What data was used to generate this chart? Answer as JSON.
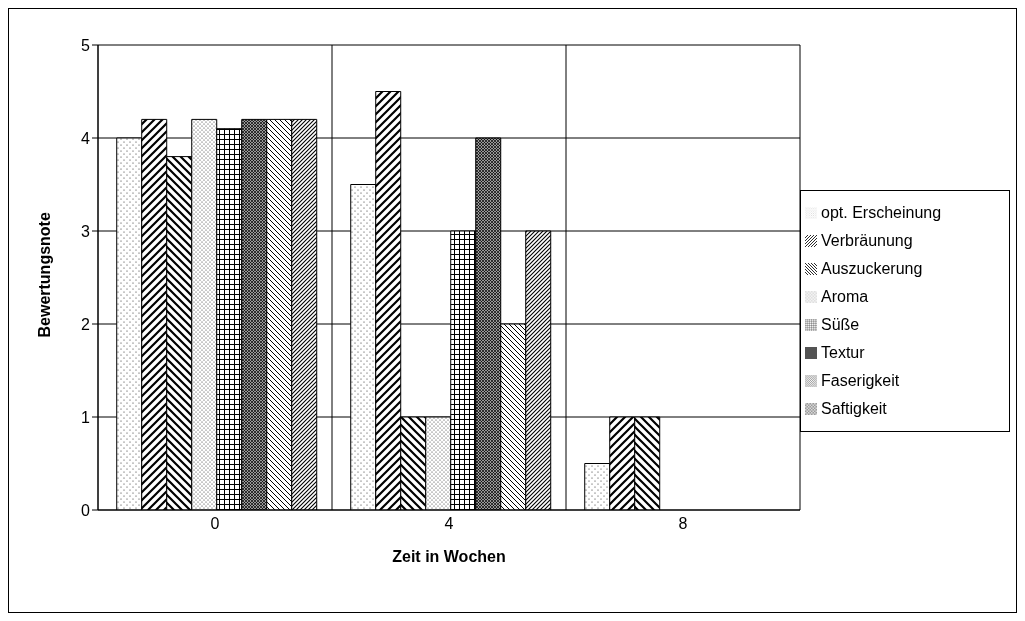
{
  "chart_data": {
    "type": "bar",
    "xlabel": "Zeit in Wochen",
    "ylabel": "Bewertungsnote",
    "categories": [
      "0",
      "4",
      "8"
    ],
    "series": [
      {
        "name": "opt. Erscheinung",
        "color": "#000000",
        "values": [
          4.0,
          3.5,
          0.5
        ]
      },
      {
        "name": "Verbräunung",
        "color": "#000000",
        "values": [
          4.2,
          4.5,
          1.0
        ]
      },
      {
        "name": "Auszuckerung",
        "color": "#000000",
        "values": [
          3.8,
          1.0,
          1.0
        ]
      },
      {
        "name": "Aroma",
        "color": "#000000",
        "values": [
          4.2,
          1.0,
          0
        ]
      },
      {
        "name": "Süße",
        "color": "#000000",
        "values": [
          4.1,
          3.0,
          0
        ]
      },
      {
        "name": "Textur",
        "color": "#000000",
        "values": [
          4.2,
          4.0,
          0
        ]
      },
      {
        "name": "Faserigkeit",
        "color": "#000000",
        "values": [
          4.2,
          2.0,
          0
        ]
      },
      {
        "name": "Saftigkeit",
        "color": "#000000",
        "values": [
          4.2,
          3.0,
          0
        ]
      }
    ],
    "ylim": [
      0,
      5
    ],
    "yticks": [
      0,
      1,
      2,
      3,
      4,
      5
    ],
    "grid": true,
    "legend": "right"
  }
}
